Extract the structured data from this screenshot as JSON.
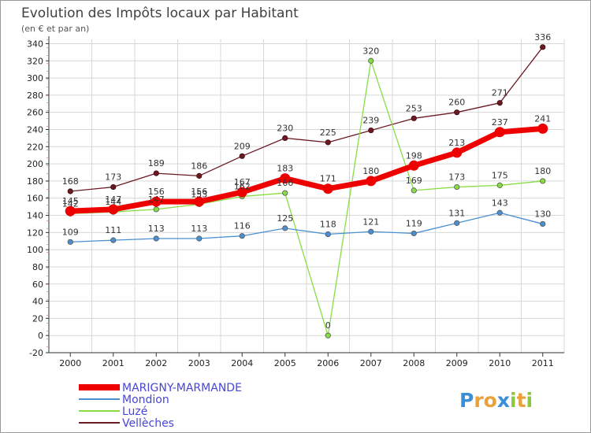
{
  "chart_data": {
    "type": "line",
    "title": "Evolution des Impôts locaux par Habitant",
    "subtitle": "(en € et par an)",
    "categories": [
      "2000",
      "2001",
      "2002",
      "2003",
      "2004",
      "2005",
      "2006",
      "2007",
      "2008",
      "2009",
      "2010",
      "2011"
    ],
    "y_ticks": [
      -20,
      0,
      20,
      40,
      60,
      80,
      100,
      120,
      140,
      160,
      180,
      200,
      220,
      240,
      260,
      280,
      300,
      320,
      340
    ],
    "ylim": [
      -20,
      345
    ],
    "series": [
      {
        "name": "MARIGNY-MARMANDE",
        "color": "#ee0000",
        "values": [
          145,
          147,
          156,
          156,
          167,
          183,
          171,
          180,
          198,
          213,
          237,
          241
        ]
      },
      {
        "name": "Mondion",
        "color": "#4a90d0",
        "values": [
          109,
          111,
          113,
          113,
          116,
          125,
          118,
          121,
          119,
          131,
          143,
          130
        ]
      },
      {
        "name": "Luzé",
        "color": "#88dd44",
        "values": [
          142,
          144,
          147,
          153,
          162,
          166,
          0,
          320,
          169,
          173,
          175,
          180
        ]
      },
      {
        "name": "Vellèches",
        "color": "#6b1a22",
        "values": [
          168,
          173,
          189,
          186,
          209,
          230,
          225,
          239,
          253,
          260,
          271,
          336
        ]
      }
    ],
    "data_labels": [
      {
        "series": 0,
        "labels": [
          "145",
          "147",
          "156",
          "156",
          "167",
          "183",
          "171",
          "180",
          "198",
          "213",
          "237",
          "241"
        ]
      },
      {
        "series": 1,
        "labels": [
          "109",
          "111",
          "113",
          "113",
          "116",
          "125",
          "118",
          "121",
          "119",
          "131",
          "143",
          "130"
        ]
      },
      {
        "series": 2,
        "labels": [
          "142",
          "144",
          "147",
          "153",
          "162",
          "166",
          "0",
          "320",
          "169",
          "173",
          "175",
          "180"
        ]
      },
      {
        "series": 3,
        "labels": [
          "168",
          "173",
          "189",
          "186",
          "209",
          "230",
          "225",
          "239",
          "253",
          "260",
          "271",
          "336"
        ]
      }
    ],
    "legend_position": "bottom-left"
  },
  "branding": {
    "logo_text": "Proxiti",
    "logo_letters": [
      {
        "ch": "P",
        "color": "#3a8fd8"
      },
      {
        "ch": "r",
        "color": "#e9a13b"
      },
      {
        "ch": "o",
        "color": "#e9a13b"
      },
      {
        "ch": "x",
        "color": "#3a8fd8"
      },
      {
        "ch": "i",
        "color": "#8dc63f"
      },
      {
        "ch": "t",
        "color": "#e9a13b"
      },
      {
        "ch": "i",
        "color": "#8dc63f"
      }
    ]
  },
  "colors": {
    "grid": "#d7d7d7",
    "axis": "#333333",
    "legend_text": "#4646d8",
    "marker_stroke": "#555555"
  }
}
